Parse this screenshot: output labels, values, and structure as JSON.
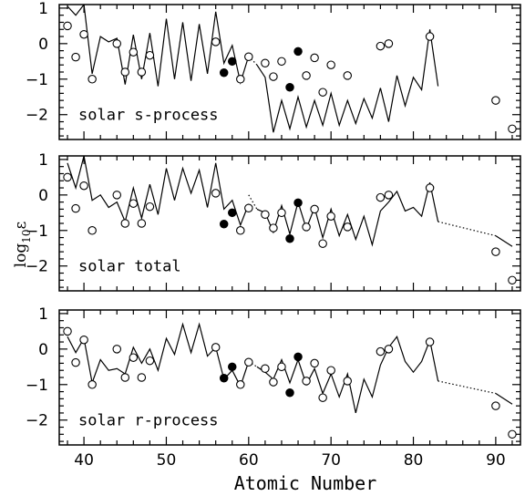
{
  "chart_data": {
    "type": "line+scatter",
    "xlabel": "Atomic Number",
    "ylabel_main": "log",
    "ylabel_sub": "10",
    "ylabel_eps": "ε",
    "xlim": [
      37,
      93
    ],
    "ylim": [
      -2.7,
      1.1
    ],
    "xticks": [
      40,
      50,
      60,
      70,
      80,
      90
    ],
    "yticks": [
      1,
      0,
      -1,
      -2
    ],
    "observed_open": [
      [
        38,
        0.5
      ],
      [
        39,
        -0.38
      ],
      [
        40,
        0.26
      ],
      [
        41,
        -1.0
      ],
      [
        44,
        0.0
      ],
      [
        45,
        -0.8
      ],
      [
        46,
        -0.24
      ],
      [
        47,
        -0.8
      ],
      [
        48,
        -0.33
      ],
      [
        56,
        0.05
      ],
      [
        59,
        -1.0
      ],
      [
        60,
        -0.37
      ],
      [
        62,
        -0.55
      ],
      [
        63,
        -0.93
      ],
      [
        64,
        -0.5
      ],
      [
        67,
        -0.9
      ],
      [
        68,
        -0.4
      ],
      [
        69,
        -1.37
      ],
      [
        70,
        -0.6
      ],
      [
        72,
        -0.9
      ],
      [
        76,
        -0.07
      ],
      [
        77,
        0.0
      ],
      [
        82,
        0.2
      ],
      [
        90,
        -1.6
      ],
      [
        92,
        -2.4
      ]
    ],
    "observed_filled": [
      [
        57,
        -0.82
      ],
      [
        58,
        -0.5
      ],
      [
        65,
        -1.23
      ],
      [
        66,
        -0.22
      ]
    ],
    "panels": [
      {
        "label": "solar s-process",
        "solid": [
          [
            38,
            1.05
          ],
          [
            39,
            0.8
          ],
          [
            40,
            1.1
          ],
          [
            41,
            -0.85
          ],
          [
            42,
            0.2
          ],
          [
            43,
            0.05
          ],
          [
            44,
            0.15
          ],
          [
            45,
            -1.15
          ],
          [
            46,
            0.25
          ],
          [
            47,
            -1.0
          ],
          [
            48,
            0.3
          ],
          [
            49,
            -1.2
          ],
          [
            50,
            0.7
          ],
          [
            51,
            -1.0
          ],
          [
            52,
            0.6
          ],
          [
            53,
            -1.05
          ],
          [
            54,
            0.55
          ],
          [
            55,
            -0.85
          ],
          [
            56,
            0.9
          ],
          [
            57,
            -0.55
          ],
          [
            58,
            -0.05
          ],
          [
            59,
            -1.1
          ],
          [
            60,
            -0.35
          ]
        ],
        "dotted": [
          [
            60,
            -0.35
          ],
          [
            61,
            -0.6
          ]
        ],
        "solid2": [
          [
            61,
            -0.6
          ],
          [
            62,
            -0.95
          ],
          [
            63,
            -2.5
          ],
          [
            64,
            -1.6
          ],
          [
            65,
            -2.4
          ],
          [
            66,
            -1.5
          ],
          [
            67,
            -2.35
          ],
          [
            68,
            -1.6
          ],
          [
            69,
            -2.3
          ],
          [
            70,
            -1.4
          ],
          [
            71,
            -2.3
          ],
          [
            72,
            -1.6
          ],
          [
            73,
            -2.25
          ],
          [
            74,
            -1.55
          ],
          [
            75,
            -2.1
          ],
          [
            76,
            -1.25
          ],
          [
            77,
            -2.2
          ],
          [
            78,
            -0.9
          ],
          [
            79,
            -1.75
          ],
          [
            80,
            -0.95
          ],
          [
            81,
            -1.3
          ],
          [
            82,
            0.4
          ],
          [
            83,
            -1.2
          ]
        ]
      },
      {
        "label": "solar total",
        "solid": [
          [
            38,
            0.9
          ],
          [
            39,
            0.2
          ],
          [
            40,
            1.1
          ],
          [
            41,
            -0.15
          ],
          [
            42,
            0.0
          ],
          [
            43,
            -0.35
          ],
          [
            44,
            -0.2
          ],
          [
            45,
            -0.75
          ],
          [
            46,
            0.2
          ],
          [
            47,
            -0.65
          ],
          [
            48,
            0.3
          ],
          [
            49,
            -0.55
          ],
          [
            50,
            0.75
          ],
          [
            51,
            -0.15
          ],
          [
            52,
            0.75
          ],
          [
            53,
            0.05
          ],
          [
            54,
            0.7
          ],
          [
            55,
            -0.35
          ],
          [
            56,
            0.9
          ],
          [
            57,
            -0.4
          ],
          [
            58,
            -0.15
          ],
          [
            59,
            -0.85
          ],
          [
            60,
            -0.25
          ]
        ],
        "dotted": [
          [
            60,
            0.0
          ],
          [
            61,
            -0.4
          ]
        ],
        "solid2": [
          [
            61,
            -0.4
          ],
          [
            62,
            -0.5
          ],
          [
            63,
            -1.05
          ],
          [
            64,
            -0.3
          ],
          [
            65,
            -1.1
          ],
          [
            66,
            -0.2
          ],
          [
            67,
            -0.95
          ],
          [
            68,
            -0.35
          ],
          [
            69,
            -1.2
          ],
          [
            70,
            -0.4
          ],
          [
            71,
            -1.15
          ],
          [
            72,
            -0.55
          ],
          [
            73,
            -1.25
          ],
          [
            74,
            -0.6
          ],
          [
            75,
            -1.4
          ],
          [
            76,
            -0.45
          ],
          [
            77,
            -0.2
          ],
          [
            78,
            0.1
          ],
          [
            79,
            -0.45
          ],
          [
            80,
            -0.35
          ],
          [
            81,
            -0.6
          ],
          [
            82,
            0.35
          ],
          [
            83,
            -0.75
          ]
        ],
        "dotted2": [
          [
            83,
            -0.75
          ],
          [
            90,
            -1.15
          ]
        ],
        "solid3": [
          [
            90,
            -1.15
          ],
          [
            92,
            -1.45
          ]
        ]
      },
      {
        "label": "solar r-process",
        "solid": [
          [
            38,
            0.35
          ],
          [
            39,
            -0.1
          ],
          [
            40,
            0.3
          ],
          [
            41,
            -0.95
          ],
          [
            42,
            -0.3
          ],
          [
            43,
            -0.6
          ],
          [
            44,
            -0.55
          ],
          [
            45,
            -0.7
          ],
          [
            46,
            0.05
          ],
          [
            47,
            -0.4
          ],
          [
            48,
            0.0
          ],
          [
            49,
            -0.6
          ],
          [
            50,
            0.3
          ],
          [
            51,
            -0.15
          ],
          [
            52,
            0.7
          ],
          [
            53,
            -0.1
          ],
          [
            54,
            0.7
          ],
          [
            55,
            -0.2
          ],
          [
            56,
            0.05
          ],
          [
            57,
            -0.85
          ],
          [
            58,
            -0.6
          ],
          [
            59,
            -1.05
          ],
          [
            60,
            -0.35
          ]
        ],
        "dotted": [
          [
            60,
            -0.35
          ],
          [
            61,
            -0.5
          ]
        ],
        "solid2": [
          [
            61,
            -0.5
          ],
          [
            62,
            -0.65
          ],
          [
            63,
            -0.85
          ],
          [
            64,
            -0.3
          ],
          [
            65,
            -0.95
          ],
          [
            66,
            -0.3
          ],
          [
            67,
            -1.0
          ],
          [
            68,
            -0.55
          ],
          [
            69,
            -1.25
          ],
          [
            70,
            -0.7
          ],
          [
            71,
            -1.35
          ],
          [
            72,
            -0.7
          ],
          [
            73,
            -1.8
          ],
          [
            74,
            -0.85
          ],
          [
            75,
            -1.35
          ],
          [
            76,
            -0.45
          ],
          [
            77,
            0.05
          ],
          [
            78,
            0.35
          ],
          [
            79,
            -0.35
          ],
          [
            80,
            -0.65
          ],
          [
            81,
            -0.35
          ],
          [
            82,
            0.25
          ],
          [
            83,
            -0.9
          ]
        ],
        "dotted2": [
          [
            83,
            -0.9
          ],
          [
            90,
            -1.25
          ]
        ],
        "solid3": [
          [
            90,
            -1.25
          ],
          [
            92,
            -1.55
          ]
        ]
      }
    ]
  }
}
